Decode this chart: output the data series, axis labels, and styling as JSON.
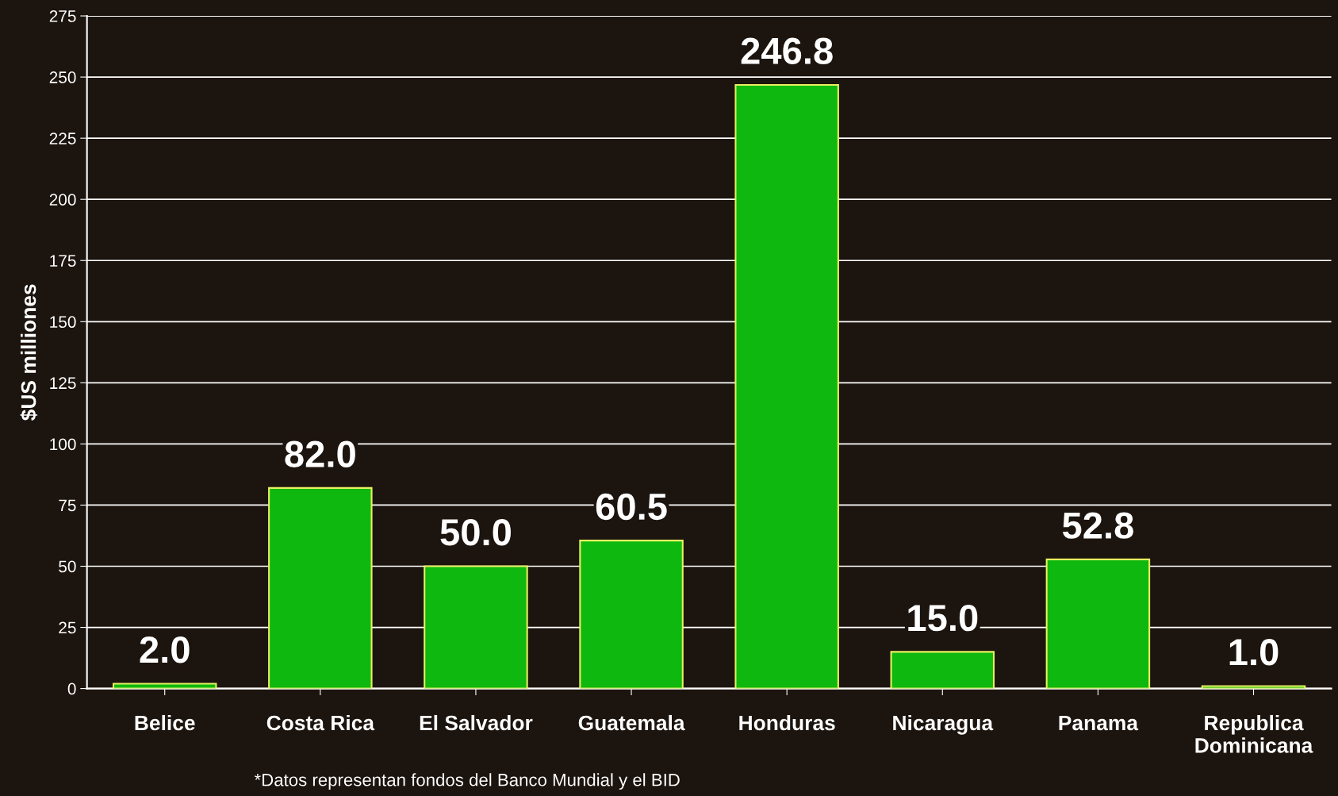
{
  "chart_data": {
    "type": "bar",
    "ylabel": "$US milliones",
    "categories": [
      "Belice",
      "Costa Rica",
      "El Salvador",
      "Guatemala",
      "Honduras",
      "Nicaragua",
      "Panama",
      "Republica\nDominicana"
    ],
    "values": [
      2.0,
      82.0,
      50.0,
      60.5,
      246.8,
      15.0,
      52.8,
      1.0
    ],
    "value_labels": [
      "2.0",
      "82.0",
      "50.0",
      "60.5",
      "246.8",
      "15.0",
      "52.8",
      "1.0"
    ],
    "color": "#0fb80f",
    "ylim": [
      0,
      275
    ],
    "yticks": [
      0,
      25,
      50,
      75,
      100,
      125,
      150,
      175,
      200,
      225,
      250,
      275
    ],
    "grid": "y",
    "annotations": [
      "*Datos representan fondos del Banco Mundial y el BID"
    ]
  }
}
